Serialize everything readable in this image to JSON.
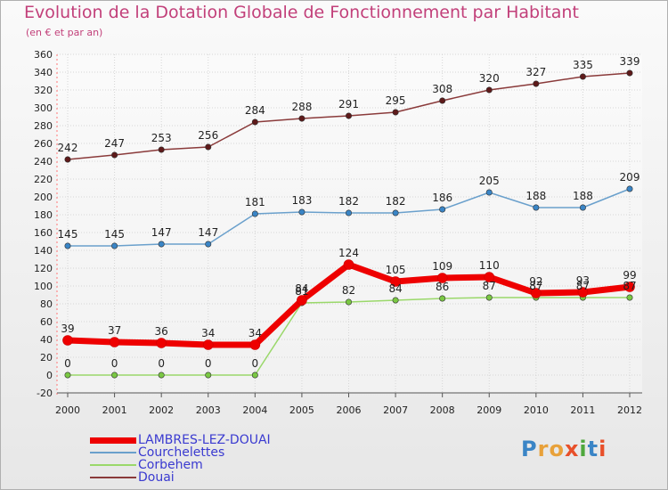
{
  "chart_title": "Evolution de la Dotation Globale de Fonctionnement par Habitant",
  "chart_subtitle": "(en € et par an)",
  "logo_text": "Proxiti",
  "colors": {
    "title": "#c2407a",
    "legend_text": "#3a3ad0"
  },
  "chart_data": {
    "type": "line",
    "x": [
      2000,
      2001,
      2002,
      2003,
      2004,
      2005,
      2006,
      2007,
      2008,
      2009,
      2010,
      2011,
      2012
    ],
    "ylim": [
      -20,
      360
    ],
    "yticks": [
      -20,
      0,
      20,
      40,
      60,
      80,
      100,
      120,
      140,
      160,
      180,
      200,
      220,
      240,
      260,
      280,
      300,
      320,
      340,
      360
    ],
    "grid": true,
    "legend_position": "bottom-left",
    "series": [
      {
        "name": "LAMBRES-LEZ-DOUAI",
        "color": "#ee0000",
        "marker": "#ee0000",
        "width": 7,
        "values": [
          39,
          37,
          36,
          34,
          34,
          84,
          124,
          105,
          109,
          110,
          92,
          93,
          99
        ]
      },
      {
        "name": "Courchelettes",
        "color": "#6aa0cc",
        "marker": "#3a85c6",
        "width": 1.5,
        "values": [
          145,
          145,
          147,
          147,
          181,
          183,
          182,
          182,
          186,
          205,
          188,
          188,
          209
        ]
      },
      {
        "name": "Corbehem",
        "color": "#9ad86a",
        "marker": "#7ac843",
        "width": 1.5,
        "values": [
          0,
          0,
          0,
          0,
          0,
          81,
          82,
          84,
          86,
          87,
          87,
          87,
          87
        ]
      },
      {
        "name": "Douai",
        "color": "#8a3a3a",
        "marker": "#5e1a1a",
        "width": 1.5,
        "values": [
          242,
          247,
          253,
          256,
          284,
          288,
          291,
          295,
          308,
          320,
          327,
          335,
          339
        ]
      }
    ]
  }
}
